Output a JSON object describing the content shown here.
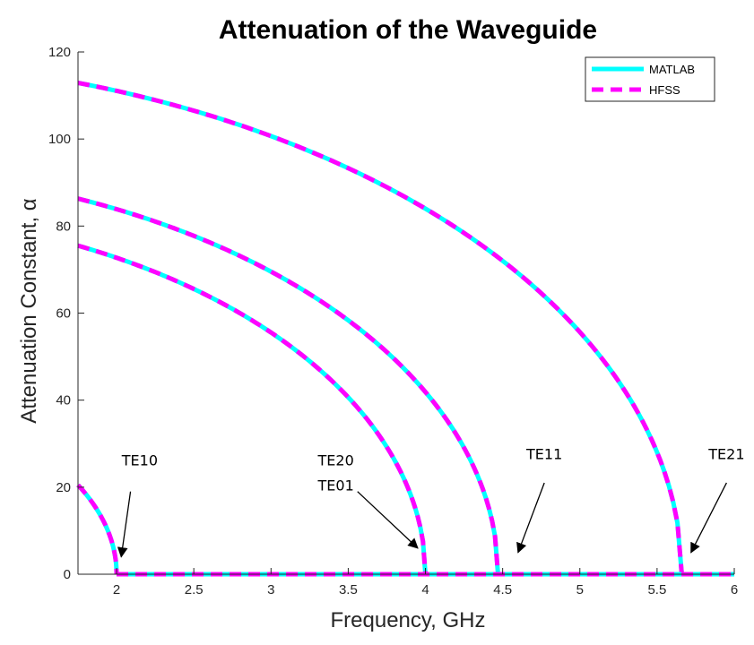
{
  "chart_data": {
    "type": "line",
    "title": "Attenuation of the Waveguide",
    "xlabel": "Frequency, GHz",
    "ylabel": "Attenuation Constant, α",
    "xlim": [
      1.75,
      6
    ],
    "ylim": [
      0,
      120
    ],
    "xticks": [
      2,
      2.5,
      3,
      3.5,
      4,
      4.5,
      5,
      5.5,
      6
    ],
    "yticks": [
      0,
      20,
      40,
      60,
      80,
      100,
      120
    ],
    "grid": false,
    "legend_location": "top-right",
    "colors": {
      "matlab": "#00ffff",
      "hfss": "#ff00ff",
      "axis": "#262626"
    },
    "series": [
      {
        "name": "MATLAB",
        "style": "solid"
      },
      {
        "name": "HFSS",
        "style": "dashed"
      }
    ],
    "modes": [
      {
        "mode": "TE10",
        "cutoff_ghz": 2.0,
        "alpha_at_start": 20.5
      },
      {
        "mode": "TE20 / TE01",
        "cutoff_ghz": 4.0,
        "alpha_at_start": 75.5
      },
      {
        "mode": "TE11",
        "cutoff_ghz": 4.47,
        "alpha_at_start": 86.3
      },
      {
        "mode": "TE21",
        "cutoff_ghz": 5.66,
        "alpha_at_start": 112.9
      }
    ],
    "annotations": [
      {
        "lines": [
          "TE10"
        ],
        "text_x": 2.15,
        "text_y": 25,
        "arrow_from": [
          2.09,
          19
        ],
        "arrow_to": [
          2.03,
          4
        ]
      },
      {
        "lines": [
          "TE20",
          "TE01"
        ],
        "text_x": 3.42,
        "text_y": 25,
        "arrow_from": [
          3.56,
          19
        ],
        "arrow_to": [
          3.95,
          6
        ]
      },
      {
        "lines": [
          "TE11"
        ],
        "text_x": 4.77,
        "text_y": 26.5,
        "arrow_from": [
          4.77,
          21
        ],
        "arrow_to": [
          4.6,
          5
        ]
      },
      {
        "lines": [
          "TE21"
        ],
        "text_x": 5.95,
        "text_y": 26.5,
        "arrow_from": [
          5.95,
          21
        ],
        "arrow_to": [
          5.72,
          5
        ]
      }
    ]
  }
}
